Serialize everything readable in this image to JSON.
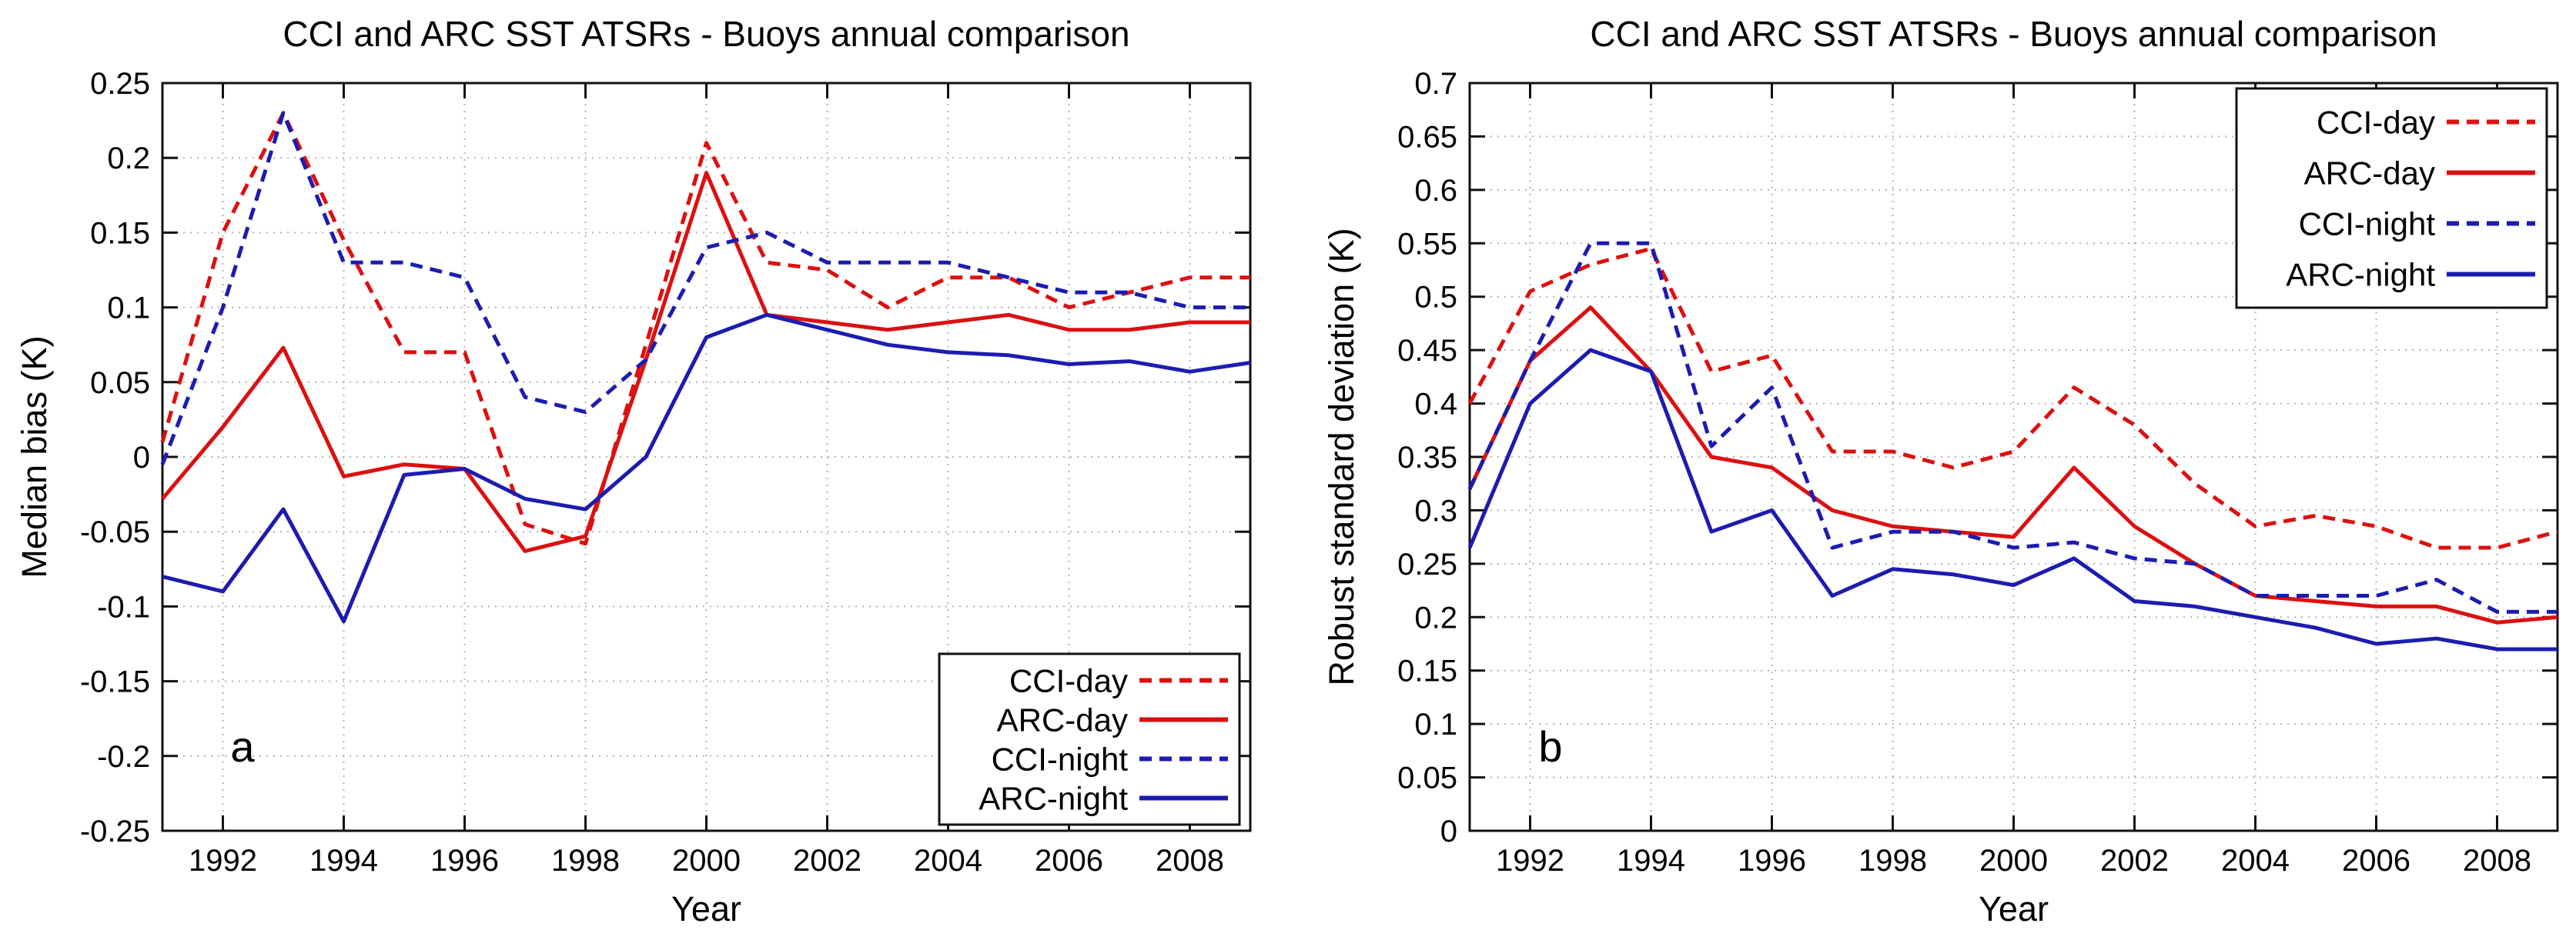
{
  "figure_title": "CCI and ARC SST ATSRs - Buoys annual comparison",
  "colors": {
    "red": "#dc1010",
    "blue": "#1c1cb0",
    "grid": "#b4b4b4",
    "axis": "#111111",
    "background": "#ffffff"
  },
  "chart_data": [
    {
      "type": "line",
      "panel_label": "a",
      "title": "CCI and ARC SST ATSRs - Buoys annual comparison",
      "xlabel": "Year",
      "ylabel": "Median bias (K)",
      "x": [
        1991,
        1992,
        1993,
        1994,
        1995,
        1996,
        1997,
        1998,
        1999,
        2000,
        2001,
        2002,
        2003,
        2004,
        2005,
        2006,
        2007,
        2008,
        2009
      ],
      "xlim": [
        1991,
        2009
      ],
      "ylim": [
        -0.25,
        0.25
      ],
      "xtick_labels": [
        "1992",
        "1994",
        "1996",
        "1998",
        "2000",
        "2002",
        "2004",
        "2006",
        "2008"
      ],
      "xtick_values": [
        1992,
        1994,
        1996,
        1998,
        2000,
        2002,
        2004,
        2006,
        2008
      ],
      "ytick_labels": [
        "0.25",
        "0.2",
        "0.15",
        "0.1",
        "0.05",
        "0",
        "-0.05",
        "-0.1",
        "-0.15",
        "-0.2",
        "-0.25"
      ],
      "ytick_values": [
        0.25,
        0.2,
        0.15,
        0.1,
        0.05,
        0,
        -0.05,
        -0.1,
        -0.15,
        -0.2,
        -0.25
      ],
      "grid": true,
      "legend_position": "lower right",
      "series": [
        {
          "name": "CCI-day",
          "color": "#dc1010",
          "dashed": true,
          "values": [
            0.01,
            0.15,
            0.23,
            0.145,
            0.07,
            0.07,
            -0.045,
            -0.058,
            0.075,
            0.21,
            0.13,
            0.125,
            0.1,
            0.12,
            0.12,
            0.1,
            0.11,
            0.12,
            0.12
          ]
        },
        {
          "name": "ARC-day",
          "color": "#dc1010",
          "dashed": false,
          "values": [
            -0.028,
            0.02,
            0.073,
            -0.013,
            -0.005,
            -0.008,
            -0.063,
            -0.053,
            0.065,
            0.19,
            0.095,
            0.09,
            0.085,
            0.09,
            0.095,
            0.085,
            0.085,
            0.09,
            0.09
          ]
        },
        {
          "name": "CCI-night",
          "color": "#1c1cb0",
          "dashed": true,
          "values": [
            -0.005,
            0.1,
            0.23,
            0.13,
            0.13,
            0.12,
            0.04,
            0.03,
            0.065,
            0.14,
            0.15,
            0.13,
            0.13,
            0.13,
            0.12,
            0.11,
            0.11,
            0.1,
            0.1
          ]
        },
        {
          "name": "ARC-night",
          "color": "#1c1cb0",
          "dashed": false,
          "values": [
            -0.08,
            -0.09,
            -0.035,
            -0.11,
            -0.012,
            -0.008,
            -0.028,
            -0.035,
            0.0,
            0.08,
            0.095,
            0.085,
            0.075,
            0.07,
            0.068,
            0.062,
            0.064,
            0.057,
            0.063
          ]
        }
      ]
    },
    {
      "type": "line",
      "panel_label": "b",
      "title": "CCI and ARC SST ATSRs - Buoys annual comparison",
      "xlabel": "Year",
      "ylabel": "Robust standard deviation (K)",
      "x": [
        1991,
        1992,
        1993,
        1994,
        1995,
        1996,
        1997,
        1998,
        1999,
        2000,
        2001,
        2002,
        2003,
        2004,
        2005,
        2006,
        2007,
        2008,
        2009
      ],
      "xlim": [
        1991,
        2009
      ],
      "ylim": [
        0,
        0.7
      ],
      "xtick_labels": [
        "1992",
        "1994",
        "1996",
        "1998",
        "2000",
        "2002",
        "2004",
        "2006",
        "2008"
      ],
      "xtick_values": [
        1992,
        1994,
        1996,
        1998,
        2000,
        2002,
        2004,
        2006,
        2008
      ],
      "ytick_labels": [
        "0.7",
        "0.65",
        "0.6",
        "0.55",
        "0.5",
        "0.45",
        "0.4",
        "0.35",
        "0.3",
        "0.25",
        "0.2",
        "0.15",
        "0.1",
        "0.05",
        "0"
      ],
      "ytick_values": [
        0.7,
        0.65,
        0.6,
        0.55,
        0.5,
        0.45,
        0.4,
        0.35,
        0.3,
        0.25,
        0.2,
        0.15,
        0.1,
        0.05,
        0
      ],
      "grid": true,
      "legend_position": "upper right",
      "series": [
        {
          "name": "CCI-day",
          "color": "#dc1010",
          "dashed": true,
          "values": [
            0.4,
            0.505,
            0.53,
            0.545,
            0.43,
            0.445,
            0.355,
            0.355,
            0.34,
            0.355,
            0.415,
            0.38,
            0.325,
            0.285,
            0.295,
            0.285,
            0.265,
            0.265,
            0.28
          ]
        },
        {
          "name": "ARC-day",
          "color": "#dc1010",
          "dashed": false,
          "values": [
            0.32,
            0.44,
            0.49,
            0.43,
            0.35,
            0.34,
            0.3,
            0.285,
            0.28,
            0.275,
            0.34,
            0.285,
            0.25,
            0.22,
            0.215,
            0.21,
            0.21,
            0.195,
            0.2
          ]
        },
        {
          "name": "CCI-night",
          "color": "#1c1cb0",
          "dashed": true,
          "values": [
            0.32,
            0.44,
            0.55,
            0.55,
            0.36,
            0.415,
            0.265,
            0.28,
            0.28,
            0.265,
            0.27,
            0.255,
            0.25,
            0.22,
            0.22,
            0.22,
            0.235,
            0.205,
            0.205
          ]
        },
        {
          "name": "ARC-night",
          "color": "#1c1cb0",
          "dashed": false,
          "values": [
            0.265,
            0.4,
            0.45,
            0.43,
            0.28,
            0.3,
            0.22,
            0.245,
            0.24,
            0.23,
            0.255,
            0.215,
            0.21,
            0.2,
            0.19,
            0.175,
            0.18,
            0.17,
            0.17
          ]
        }
      ]
    }
  ]
}
